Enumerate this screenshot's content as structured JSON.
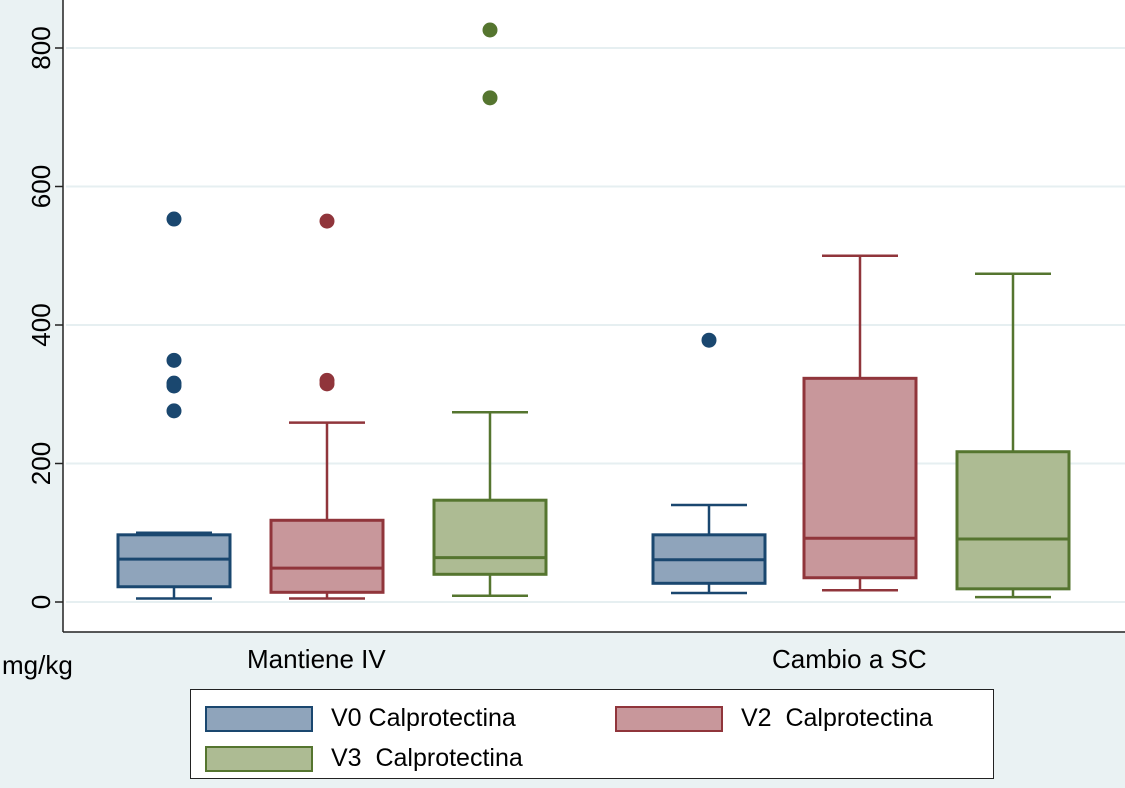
{
  "chart_data": {
    "type": "box",
    "title": "",
    "ylabel": "",
    "xlabel": "mg/kg",
    "ylim": [
      0,
      880
    ],
    "yticks": [
      "0",
      "200",
      "400",
      "600",
      "800"
    ],
    "grid": true,
    "categories": [
      "Mantiene IV",
      "Cambio a SC"
    ],
    "series": [
      {
        "name": "V0 Calprotectina",
        "color": "#1a476f",
        "fill": "#8fa4bb",
        "boxes": [
          {
            "low": 5,
            "q1": 22,
            "median": 62,
            "q3": 97,
            "high": 100,
            "outliers": [
              553,
              349,
              316,
              312,
              276
            ]
          },
          {
            "low": 13,
            "q1": 27,
            "median": 61,
            "q3": 97,
            "high": 140,
            "outliers": [
              378
            ]
          }
        ]
      },
      {
        "name": "V2  Calprotectina",
        "color": "#90353b",
        "fill": "#c8979b",
        "boxes": [
          {
            "low": 5,
            "q1": 14,
            "median": 49,
            "q3": 118,
            "high": 259,
            "outliers": [
              550,
              320,
              315
            ]
          },
          {
            "low": 17,
            "q1": 35,
            "median": 92,
            "q3": 323,
            "high": 500,
            "outliers": []
          }
        ]
      },
      {
        "name": "V3  Calprotectina",
        "color": "#55752f",
        "fill": "#adbb93",
        "boxes": [
          {
            "low": 9,
            "q1": 40,
            "median": 64,
            "q3": 147,
            "high": 274,
            "outliers": [
              826,
              728
            ]
          },
          {
            "low": 7,
            "q1": 19,
            "median": 91,
            "q3": 217,
            "high": 474,
            "outliers": []
          }
        ]
      }
    ],
    "legend": "bottom"
  }
}
